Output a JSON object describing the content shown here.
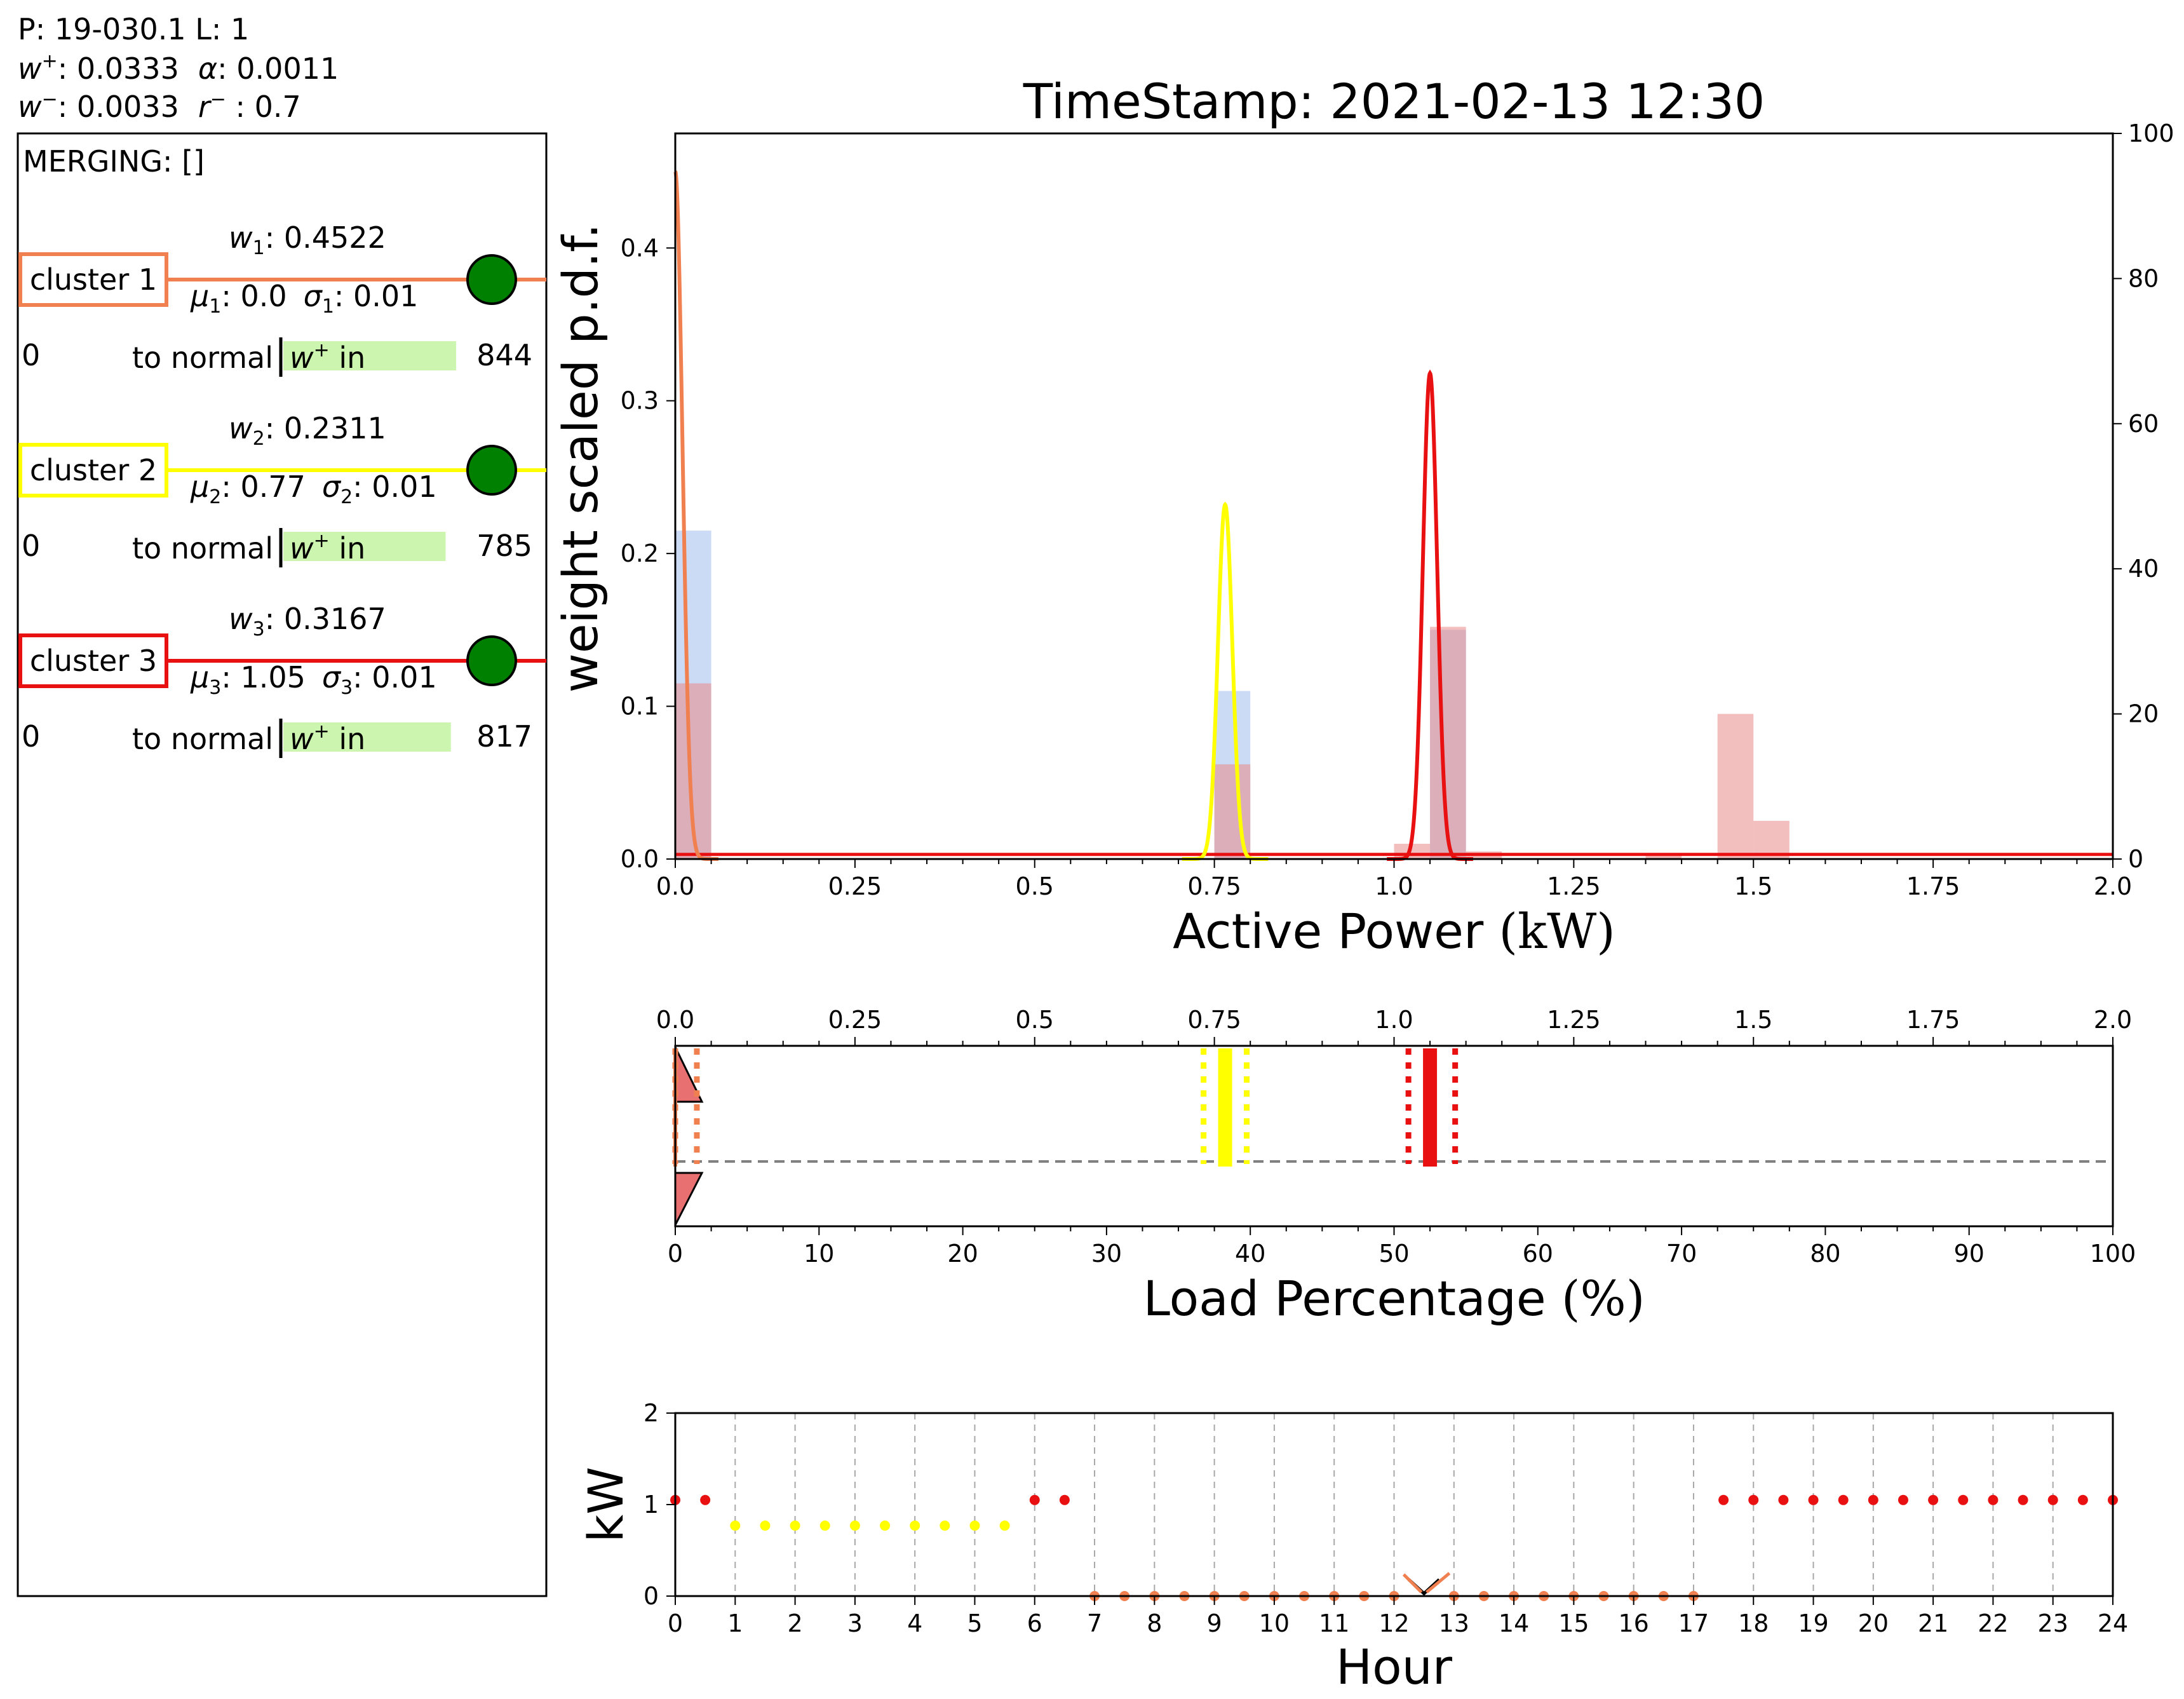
{
  "header": {
    "line1": "P: 19-030.1 L: 1",
    "w_plus_label": "w",
    "w_plus_sup": "+",
    "w_plus_value": ": 0.0333",
    "alpha_label": "α",
    "alpha_value": ": 0.0011",
    "w_minus_label": "w",
    "w_minus_sup": "−",
    "w_minus_value": ": 0.0033",
    "r_minus_label": "r",
    "r_minus_sup": "−",
    "r_minus_value": " :  0.7"
  },
  "panel": {
    "merging": "MERGING: []",
    "clusters": [
      {
        "label": "cluster 1",
        "color": "#f08050",
        "w_sym": "w",
        "w_sub": "1",
        "w_val": ": 0.4522",
        "mu_sym": "μ",
        "mu_sub": "1",
        "mu_val": ": 0.0",
        "sigma_sym": "σ",
        "sigma_sub": "1",
        "sigma_val": ": 0.01",
        "count_left": "0",
        "to_normal": "to normal",
        "w_in_sym": "w",
        "w_in_sup": "+",
        "w_in_text": " in",
        "count_right": "844",
        "w_in_fill": 0.66
      },
      {
        "label": "cluster 2",
        "color": "#ffff00",
        "w_sym": "w",
        "w_sub": "2",
        "w_val": ": 0.2311",
        "mu_sym": "μ",
        "mu_sub": "2",
        "mu_val": ": 0.77",
        "sigma_sym": "σ",
        "sigma_sub": "2",
        "sigma_val": ": 0.01",
        "count_left": "0",
        "to_normal": "to normal",
        "w_in_sym": "w",
        "w_in_sup": "+",
        "w_in_text": " in",
        "count_right": "785",
        "w_in_fill": 0.62
      },
      {
        "label": "cluster 3",
        "color": "#e81010",
        "w_sym": "w",
        "w_sub": "3",
        "w_val": ": 0.3167",
        "mu_sym": "μ",
        "mu_sub": "3",
        "mu_val": ": 1.05",
        "sigma_sym": "σ",
        "sigma_sub": "3",
        "sigma_val": ": 0.01",
        "count_left": "0",
        "to_normal": "to normal",
        "w_in_sym": "w",
        "w_in_sup": "+",
        "w_in_text": " in",
        "count_right": "817",
        "w_in_fill": 0.64
      }
    ],
    "node_color": "#008000",
    "w_in_bar_color": "#ccf5b0"
  },
  "chart_data": [
    {
      "type": "line",
      "title": "TimeStamp: 2021-02-13 12:30",
      "xlabel": "Active Power",
      "xlabel_unit": "(kW)",
      "ylabel": "weight scaled p.d.f.",
      "xlim": [
        0.0,
        2.0
      ],
      "ylim": [
        0.0,
        0.475
      ],
      "y2lim": [
        0,
        100
      ],
      "xticks": [
        0.0,
        0.25,
        0.5,
        0.75,
        1.0,
        1.25,
        1.5,
        1.75,
        2.0
      ],
      "xtick_labels": [
        "0.0",
        "0.25",
        "0.5",
        "0.75",
        "1.0",
        "1.25",
        "1.5",
        "1.75",
        "2.0"
      ],
      "yticks": [
        0.0,
        0.1,
        0.2,
        0.3,
        0.4
      ],
      "ytick_labels": [
        "0.0",
        "0.1",
        "0.2",
        "0.3",
        "0.4"
      ],
      "y2ticks": [
        0,
        20,
        40,
        60,
        80,
        100
      ],
      "y2tick_labels": [
        "0",
        "20",
        "40",
        "60",
        "80",
        "100"
      ],
      "series": [
        {
          "type": "line",
          "color": "#f08050",
          "mu": 0.0,
          "sigma": 0.01,
          "peak": 0.45
        },
        {
          "type": "line",
          "color": "#ffff00",
          "mu": 0.765,
          "sigma": 0.01,
          "peak": 0.232
        },
        {
          "type": "line",
          "color": "#e81010",
          "mu": 1.05,
          "sigma": 0.01,
          "peak": 0.318
        }
      ],
      "histograms": [
        {
          "color": "#b0c8f0",
          "opacity": 0.65,
          "bins": [
            [
              0.0,
              0.05,
              0.215
            ],
            [
              0.75,
              0.8,
              0.11
            ],
            [
              1.05,
              1.1,
              0.15
            ]
          ]
        },
        {
          "color": "#e88888",
          "opacity": 0.55,
          "bins": [
            [
              0.0,
              0.05,
              0.115
            ],
            [
              0.75,
              0.8,
              0.062
            ],
            [
              1.0,
              1.05,
              0.01
            ],
            [
              1.05,
              1.1,
              0.152
            ],
            [
              1.1,
              1.15,
              0.005
            ],
            [
              1.35,
              1.4,
              0.004
            ],
            [
              1.45,
              1.5,
              0.095
            ],
            [
              1.5,
              1.55,
              0.025
            ]
          ]
        }
      ],
      "baseline_color": "#e81010"
    },
    {
      "type": "bar",
      "xlabel": "Load Percentage",
      "xlabel_unit": "(%)",
      "xlim": [
        0,
        100
      ],
      "xticks": [
        0,
        10,
        20,
        30,
        40,
        50,
        60,
        70,
        80,
        90,
        100
      ],
      "xtick_labels": [
        "0",
        "10",
        "20",
        "30",
        "40",
        "50",
        "60",
        "70",
        "80",
        "90",
        "100"
      ],
      "top_xlim": [
        0.0,
        2.0
      ],
      "top_xticks": [
        0.0,
        0.25,
        0.5,
        0.75,
        1.0,
        1.25,
        1.5,
        1.75,
        2.0
      ],
      "top_xtick_labels": [
        "0.0",
        "0.25",
        "0.5",
        "0.75",
        "1.0",
        "1.25",
        "1.5",
        "1.75",
        "2.0"
      ],
      "clusters": [
        {
          "color": "#f08050",
          "mu": 0.0,
          "band_lo": 0.0,
          "band_hi": 0.03,
          "mean_line": 0.0
        },
        {
          "color": "#ffff00",
          "mu": 0.765,
          "band_lo": 0.735,
          "band_hi": 0.795,
          "mean_line": 0.765
        },
        {
          "color": "#e81010",
          "mu": 1.05,
          "band_lo": 1.02,
          "band_hi": 1.085,
          "mean_line": 1.05
        }
      ],
      "triangle_color": "#e87070",
      "dashed_level": 0.5
    },
    {
      "type": "scatter",
      "xlabel": "Hour",
      "ylabel": "kW",
      "xlim": [
        0,
        24
      ],
      "ylim": [
        0,
        2
      ],
      "xticks": [
        0,
        1,
        2,
        3,
        4,
        5,
        6,
        7,
        8,
        9,
        10,
        11,
        12,
        13,
        14,
        15,
        16,
        17,
        18,
        19,
        20,
        21,
        22,
        23,
        24
      ],
      "xtick_labels": [
        "0",
        "1",
        "2",
        "3",
        "4",
        "5",
        "6",
        "7",
        "8",
        "9",
        "10",
        "11",
        "12",
        "13",
        "14",
        "15",
        "16",
        "17",
        "18",
        "19",
        "20",
        "21",
        "22",
        "23",
        "24"
      ],
      "yticks": [
        0,
        1,
        2
      ],
      "ytick_labels": [
        "0",
        "1",
        "2"
      ],
      "points": [
        {
          "x": 0.0,
          "y": 1.05,
          "c": "#e81010"
        },
        {
          "x": 0.5,
          "y": 1.05,
          "c": "#e81010"
        },
        {
          "x": 1.0,
          "y": 0.77,
          "c": "#ffff00"
        },
        {
          "x": 1.5,
          "y": 0.77,
          "c": "#ffff00"
        },
        {
          "x": 2.0,
          "y": 0.77,
          "c": "#ffff00"
        },
        {
          "x": 2.5,
          "y": 0.77,
          "c": "#ffff00"
        },
        {
          "x": 3.0,
          "y": 0.77,
          "c": "#ffff00"
        },
        {
          "x": 3.5,
          "y": 0.77,
          "c": "#ffff00"
        },
        {
          "x": 4.0,
          "y": 0.77,
          "c": "#ffff00"
        },
        {
          "x": 4.5,
          "y": 0.77,
          "c": "#ffff00"
        },
        {
          "x": 5.0,
          "y": 0.77,
          "c": "#ffff00"
        },
        {
          "x": 5.5,
          "y": 0.77,
          "c": "#ffff00"
        },
        {
          "x": 6.0,
          "y": 1.05,
          "c": "#e81010"
        },
        {
          "x": 6.5,
          "y": 1.05,
          "c": "#e81010"
        },
        {
          "x": 7.0,
          "y": 0.0,
          "c": "#f08050"
        },
        {
          "x": 7.5,
          "y": 0.0,
          "c": "#f08050"
        },
        {
          "x": 8.0,
          "y": 0.0,
          "c": "#f08050"
        },
        {
          "x": 8.5,
          "y": 0.0,
          "c": "#f08050"
        },
        {
          "x": 9.0,
          "y": 0.0,
          "c": "#f08050"
        },
        {
          "x": 9.5,
          "y": 0.0,
          "c": "#f08050"
        },
        {
          "x": 10.0,
          "y": 0.0,
          "c": "#f08050"
        },
        {
          "x": 10.5,
          "y": 0.0,
          "c": "#f08050"
        },
        {
          "x": 11.0,
          "y": 0.0,
          "c": "#f08050"
        },
        {
          "x": 11.5,
          "y": 0.0,
          "c": "#f08050"
        },
        {
          "x": 12.0,
          "y": 0.0,
          "c": "#f08050"
        },
        {
          "x": 13.0,
          "y": 0.0,
          "c": "#f08050"
        },
        {
          "x": 13.5,
          "y": 0.0,
          "c": "#f08050"
        },
        {
          "x": 14.0,
          "y": 0.0,
          "c": "#f08050"
        },
        {
          "x": 14.5,
          "y": 0.0,
          "c": "#f08050"
        },
        {
          "x": 15.0,
          "y": 0.0,
          "c": "#f08050"
        },
        {
          "x": 15.5,
          "y": 0.0,
          "c": "#f08050"
        },
        {
          "x": 16.0,
          "y": 0.0,
          "c": "#f08050"
        },
        {
          "x": 16.5,
          "y": 0.0,
          "c": "#f08050"
        },
        {
          "x": 17.0,
          "y": 0.0,
          "c": "#f08050"
        },
        {
          "x": 17.5,
          "y": 1.05,
          "c": "#e81010"
        },
        {
          "x": 18.0,
          "y": 1.05,
          "c": "#e81010"
        },
        {
          "x": 18.5,
          "y": 1.05,
          "c": "#e81010"
        },
        {
          "x": 19.0,
          "y": 1.05,
          "c": "#e81010"
        },
        {
          "x": 19.5,
          "y": 1.05,
          "c": "#e81010"
        },
        {
          "x": 20.0,
          "y": 1.05,
          "c": "#e81010"
        },
        {
          "x": 20.5,
          "y": 1.05,
          "c": "#e81010"
        },
        {
          "x": 21.0,
          "y": 1.05,
          "c": "#e81010"
        },
        {
          "x": 21.5,
          "y": 1.05,
          "c": "#e81010"
        },
        {
          "x": 22.0,
          "y": 1.05,
          "c": "#e81010"
        },
        {
          "x": 22.5,
          "y": 1.05,
          "c": "#e81010"
        },
        {
          "x": 23.0,
          "y": 1.05,
          "c": "#e81010"
        },
        {
          "x": 23.5,
          "y": 1.05,
          "c": "#e81010"
        },
        {
          "x": 24.0,
          "y": 1.05,
          "c": "#e81010"
        }
      ],
      "current_marker": {
        "x": 12.5,
        "y": 0.0,
        "c": "#000000",
        "accent": "#f08050"
      },
      "grid": "x-dashed"
    }
  ]
}
